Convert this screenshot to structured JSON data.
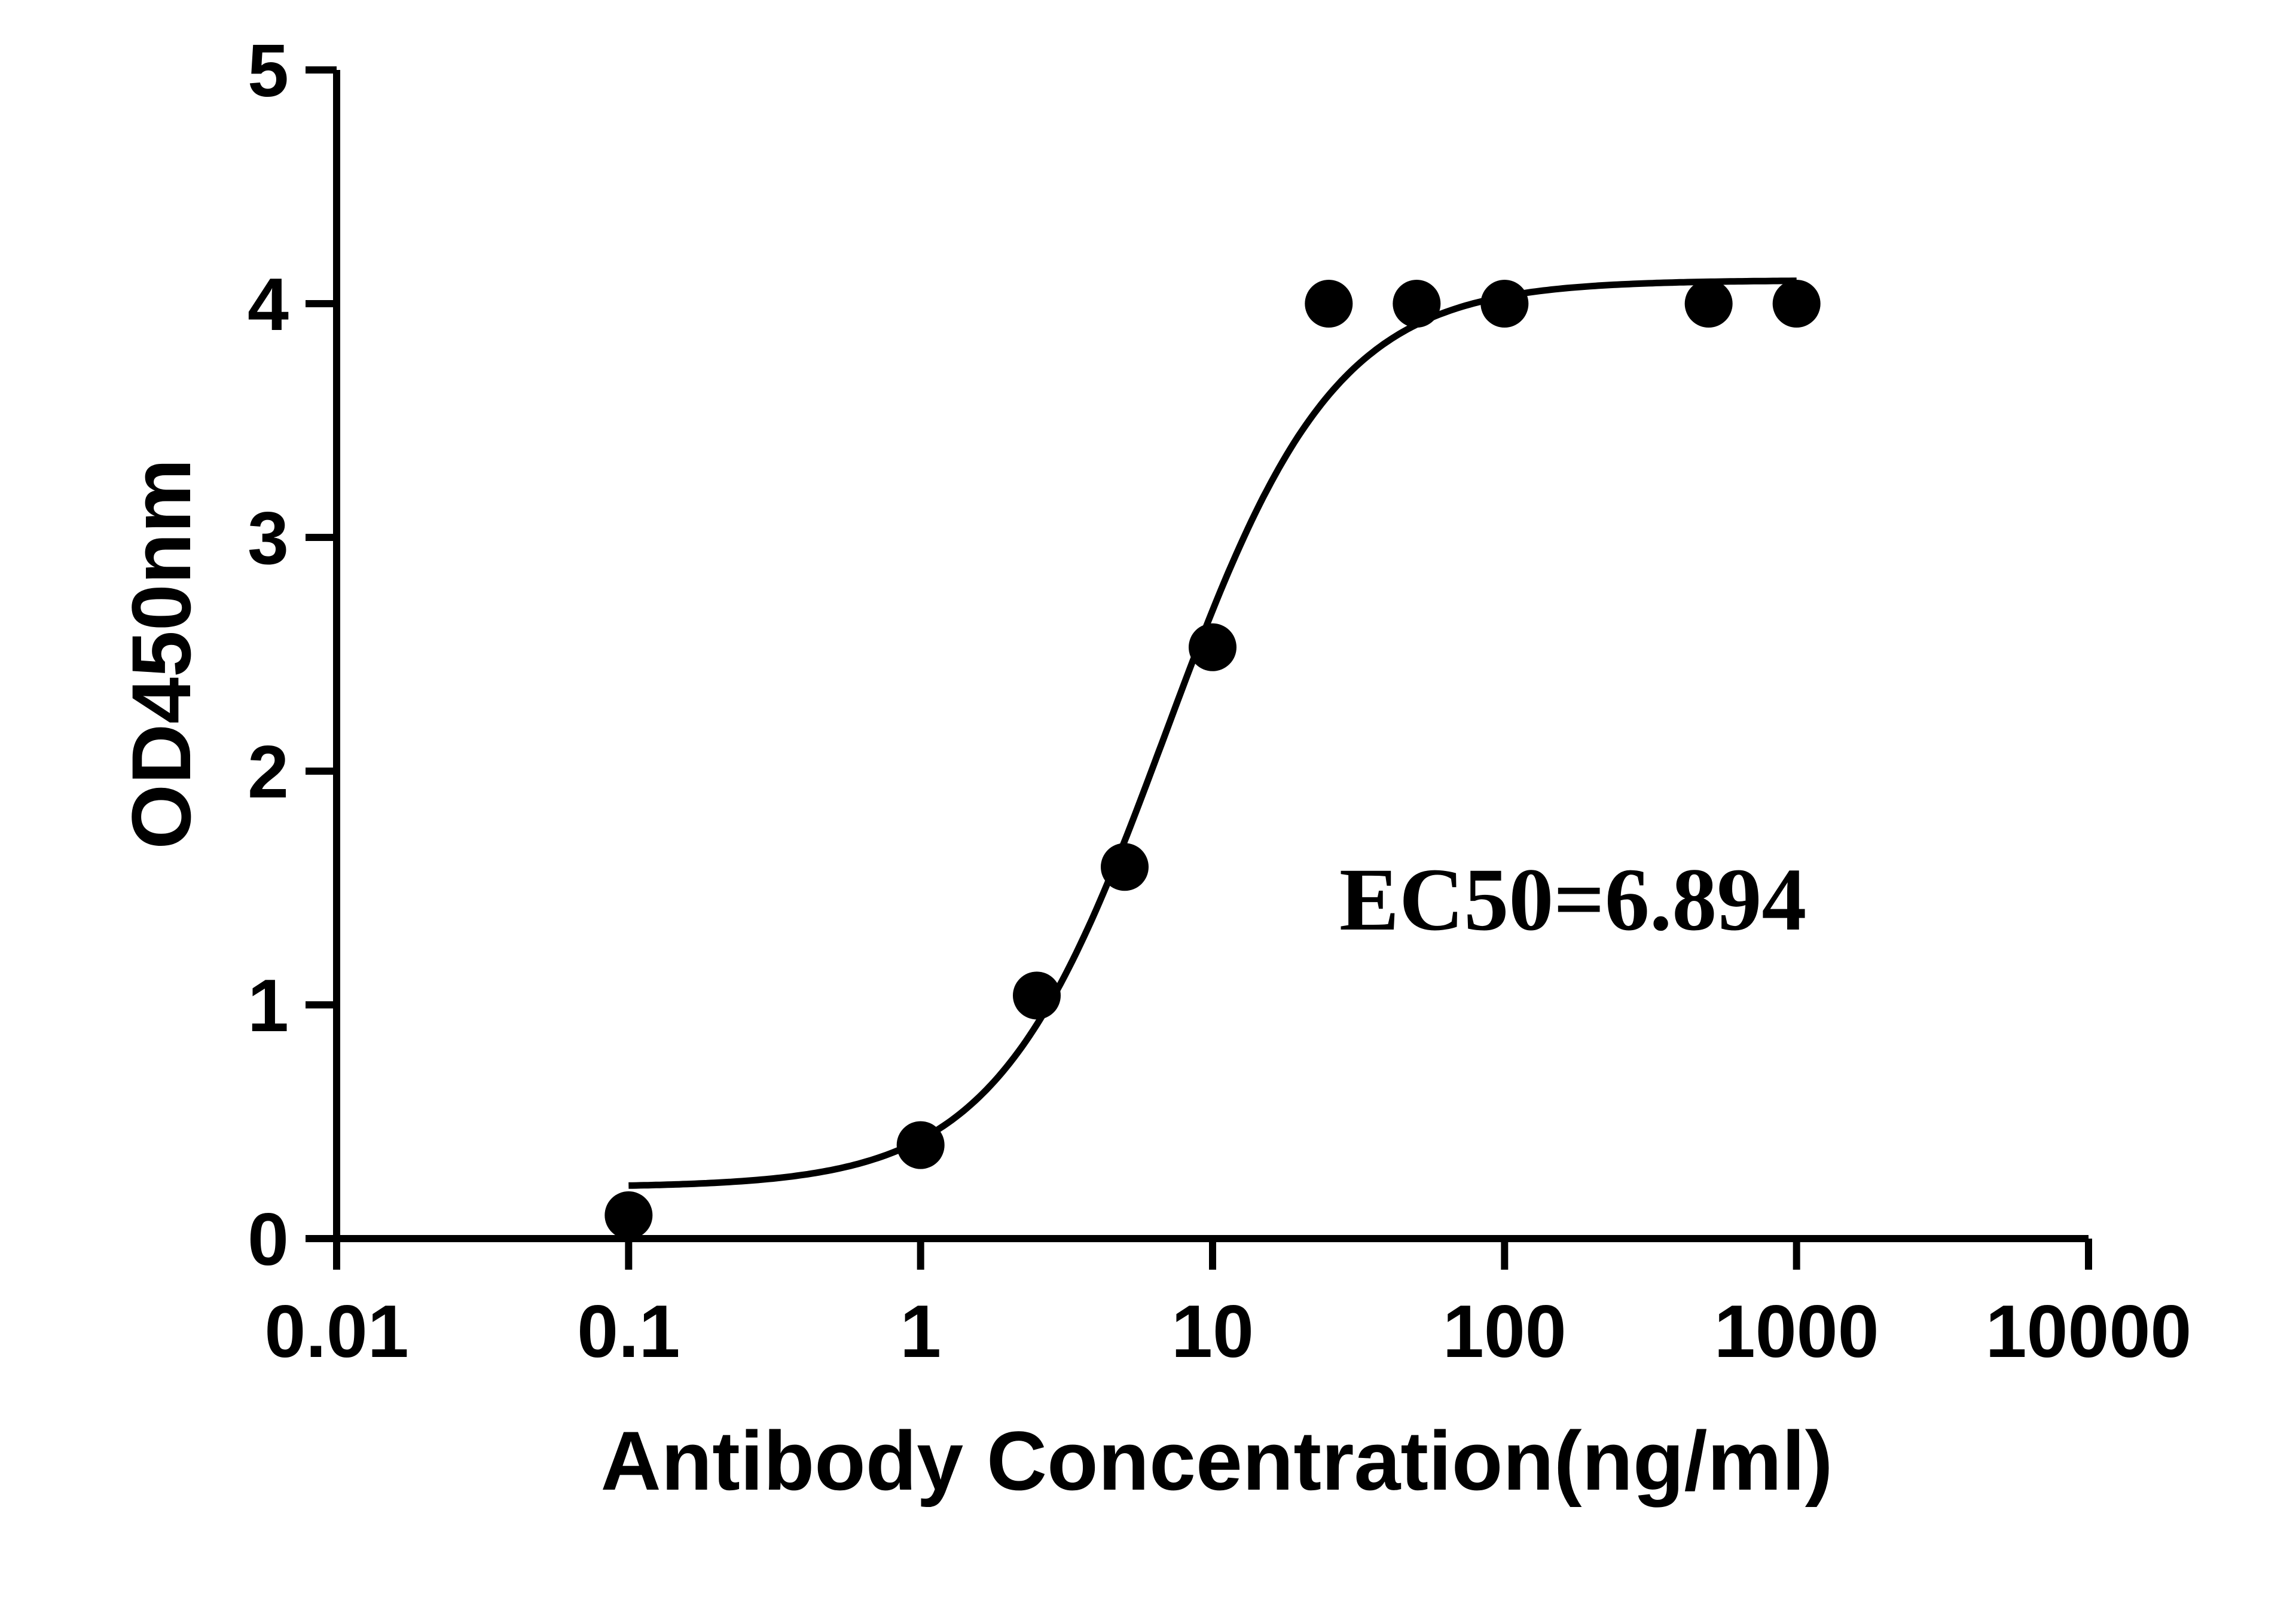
{
  "chart_data": {
    "type": "scatter",
    "title": "",
    "xlabel": "Antibody Concentration(ng/ml)",
    "ylabel": "OD450nm",
    "x_scale": "log",
    "xlim": [
      0.01,
      10000
    ],
    "ylim": [
      0,
      5
    ],
    "x_ticks": [
      0.01,
      0.1,
      1,
      10,
      100,
      1000,
      10000
    ],
    "x_tick_labels": [
      "0.01",
      "0.1",
      "1",
      "10",
      "100",
      "1000",
      "10000"
    ],
    "y_ticks": [
      0,
      1,
      2,
      3,
      4,
      5
    ],
    "y_tick_labels": [
      "0",
      "1",
      "2",
      "3",
      "4",
      "5"
    ],
    "grid": false,
    "points": {
      "x": [
        0.1,
        1,
        2.5,
        5,
        10,
        25,
        50,
        100,
        500,
        1000
      ],
      "y": [
        0.1,
        0.4,
        1.04,
        1.59,
        2.53,
        4.0,
        4.0,
        4.0,
        4.0,
        4.0
      ]
    },
    "fit_curve": {
      "model": "four-parameter logistic",
      "bottom": 0.22,
      "top": 4.1,
      "ec50": 6.894,
      "hill": 1.5,
      "x_range": [
        0.1,
        1000
      ]
    },
    "annotation": "EC50=6.894",
    "colors": {
      "marker": "#000000",
      "line": "#000000",
      "axis": "#000000"
    }
  }
}
